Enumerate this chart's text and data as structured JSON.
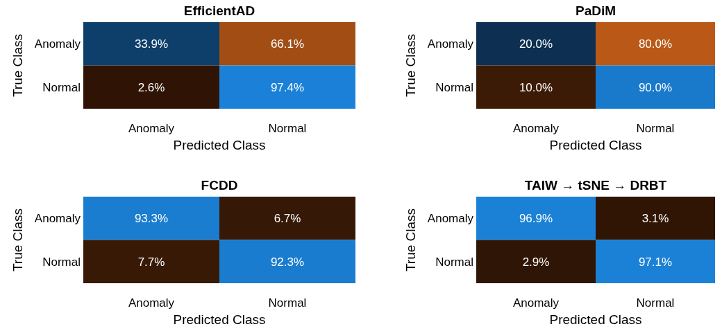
{
  "chart_data": [
    {
      "type": "heatmap",
      "title": "EfficientAD",
      "xlabel": "Predicted Class",
      "ylabel": "True Class",
      "categories": [
        "Anomaly",
        "Normal"
      ],
      "y_categories": [
        "Anomaly",
        "Normal"
      ],
      "cells": [
        [
          33.9,
          66.1
        ],
        [
          2.6,
          97.4
        ]
      ],
      "cell_labels": [
        [
          "33.9%",
          "66.1%"
        ],
        [
          "2.6%",
          "97.4%"
        ]
      ]
    },
    {
      "type": "heatmap",
      "title": "PaDiM",
      "xlabel": "Predicted Class",
      "ylabel": "True Class",
      "categories": [
        "Anomaly",
        "Normal"
      ],
      "y_categories": [
        "Anomaly",
        "Normal"
      ],
      "cells": [
        [
          20.0,
          80.0
        ],
        [
          10.0,
          90.0
        ]
      ],
      "cell_labels": [
        [
          "20.0%",
          "80.0%"
        ],
        [
          "10.0%",
          "90.0%"
        ]
      ]
    },
    {
      "type": "heatmap",
      "title": "FCDD",
      "xlabel": "Predicted Class",
      "ylabel": "True Class",
      "categories": [
        "Anomaly",
        "Normal"
      ],
      "y_categories": [
        "Anomaly",
        "Normal"
      ],
      "cells": [
        [
          93.3,
          6.7
        ],
        [
          7.7,
          92.3
        ]
      ],
      "cell_labels": [
        [
          "93.3%",
          "6.7%"
        ],
        [
          "7.7%",
          "92.3%"
        ]
      ]
    },
    {
      "type": "heatmap",
      "title": "TAIW → tSNE → DRBT",
      "xlabel": "Predicted Class",
      "ylabel": "True Class",
      "categories": [
        "Anomaly",
        "Normal"
      ],
      "y_categories": [
        "Anomaly",
        "Normal"
      ],
      "cells": [
        [
          96.9,
          3.1
        ],
        [
          2.9,
          97.1
        ]
      ],
      "cell_labels": [
        [
          "96.9%",
          "3.1%"
        ],
        [
          "2.9%",
          "97.1%"
        ]
      ]
    }
  ]
}
